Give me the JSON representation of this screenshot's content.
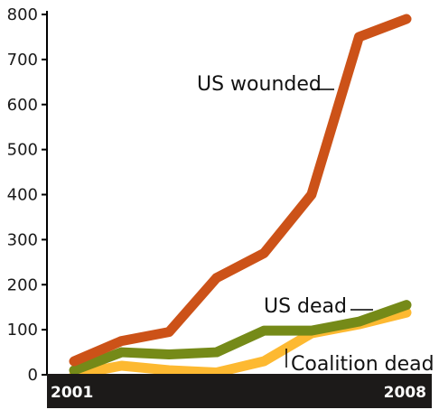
{
  "chart_data": {
    "type": "line",
    "title": "",
    "xlabel": "",
    "ylabel": "",
    "x": [
      2001,
      2002,
      2003,
      2004,
      2005,
      2006,
      2007,
      2008
    ],
    "x_tick_labels": [
      "2001",
      "2008"
    ],
    "ylim": [
      0,
      800
    ],
    "y_ticks": [
      0,
      100,
      200,
      300,
      400,
      500,
      600,
      700,
      800
    ],
    "grid": false,
    "legend": "inline-labels",
    "series": [
      {
        "name": "US wounded",
        "color": "#cc5218",
        "values": [
          30,
          75,
          95,
          215,
          270,
          400,
          750,
          790
        ]
      },
      {
        "name": "US dead",
        "color": "#758a18",
        "values": [
          10,
          50,
          45,
          50,
          98,
          98,
          118,
          155
        ]
      },
      {
        "name": "Coalition dead",
        "color": "#fdb931",
        "values": [
          0,
          20,
          10,
          5,
          30,
          92,
          112,
          138
        ]
      }
    ]
  }
}
